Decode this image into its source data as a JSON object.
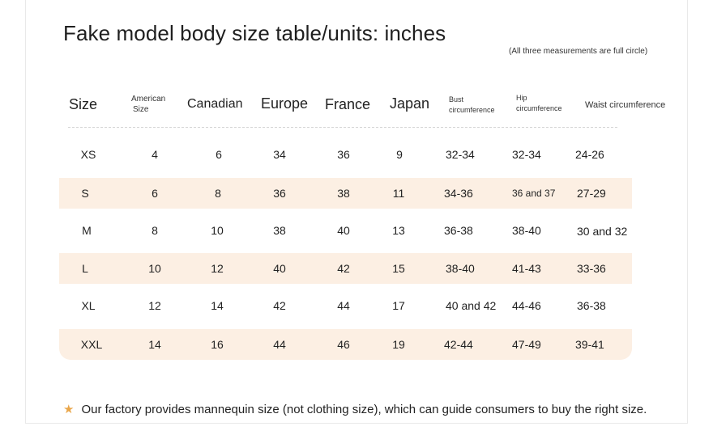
{
  "title": "Fake model body size table/units: inches",
  "note": "(All three measurements are full circle)",
  "headers": {
    "size": "Size",
    "american_line1": "American",
    "american_line2": "Size",
    "canadian": "Canadian",
    "europe": "Europe",
    "france": "France",
    "japan": "Japan",
    "bust_line1": "Bust",
    "bust_line2": "circumference",
    "hip_line1": "Hip",
    "hip_line2": "circumference",
    "waist": "Waist circumference"
  },
  "rows": [
    {
      "size": "XS",
      "american": "4",
      "canadian": "6",
      "europe": "34",
      "france": "36",
      "japan": "9",
      "bust": "32-34",
      "hip": "32-34",
      "waist": "24-26"
    },
    {
      "size": "S",
      "american": "6",
      "canadian": "8",
      "europe": "36",
      "france": "38",
      "japan": "11",
      "bust": "34-36",
      "hip": "36 and 37",
      "waist": "27-29"
    },
    {
      "size": "M",
      "american": "8",
      "canadian": "10",
      "europe": "38",
      "france": "40",
      "japan": "13",
      "bust": "36-38",
      "hip": "38-40",
      "waist": "30 and 32"
    },
    {
      "size": "L",
      "american": "10",
      "canadian": "12",
      "europe": "40",
      "france": "42",
      "japan": "15",
      "bust": "38-40",
      "hip": "41-43",
      "waist": "33-36"
    },
    {
      "size": "XL",
      "american": "12",
      "canadian": "14",
      "europe": "42",
      "france": "44",
      "japan": "17",
      "bust": "40 and 42",
      "hip": "44-46",
      "waist": "36-38"
    },
    {
      "size": "XXL",
      "american": "14",
      "canadian": "16",
      "europe": "44",
      "france": "46",
      "japan": "19",
      "bust": "42-44",
      "hip": "47-49",
      "waist": "39-41"
    }
  ],
  "footer": {
    "icon": "star-icon",
    "text": "Our factory provides mannequin size (not clothing size), which can guide consumers to buy the right size."
  },
  "colors": {
    "row_shade": "#fcefe3",
    "star": "#e9a64a"
  }
}
